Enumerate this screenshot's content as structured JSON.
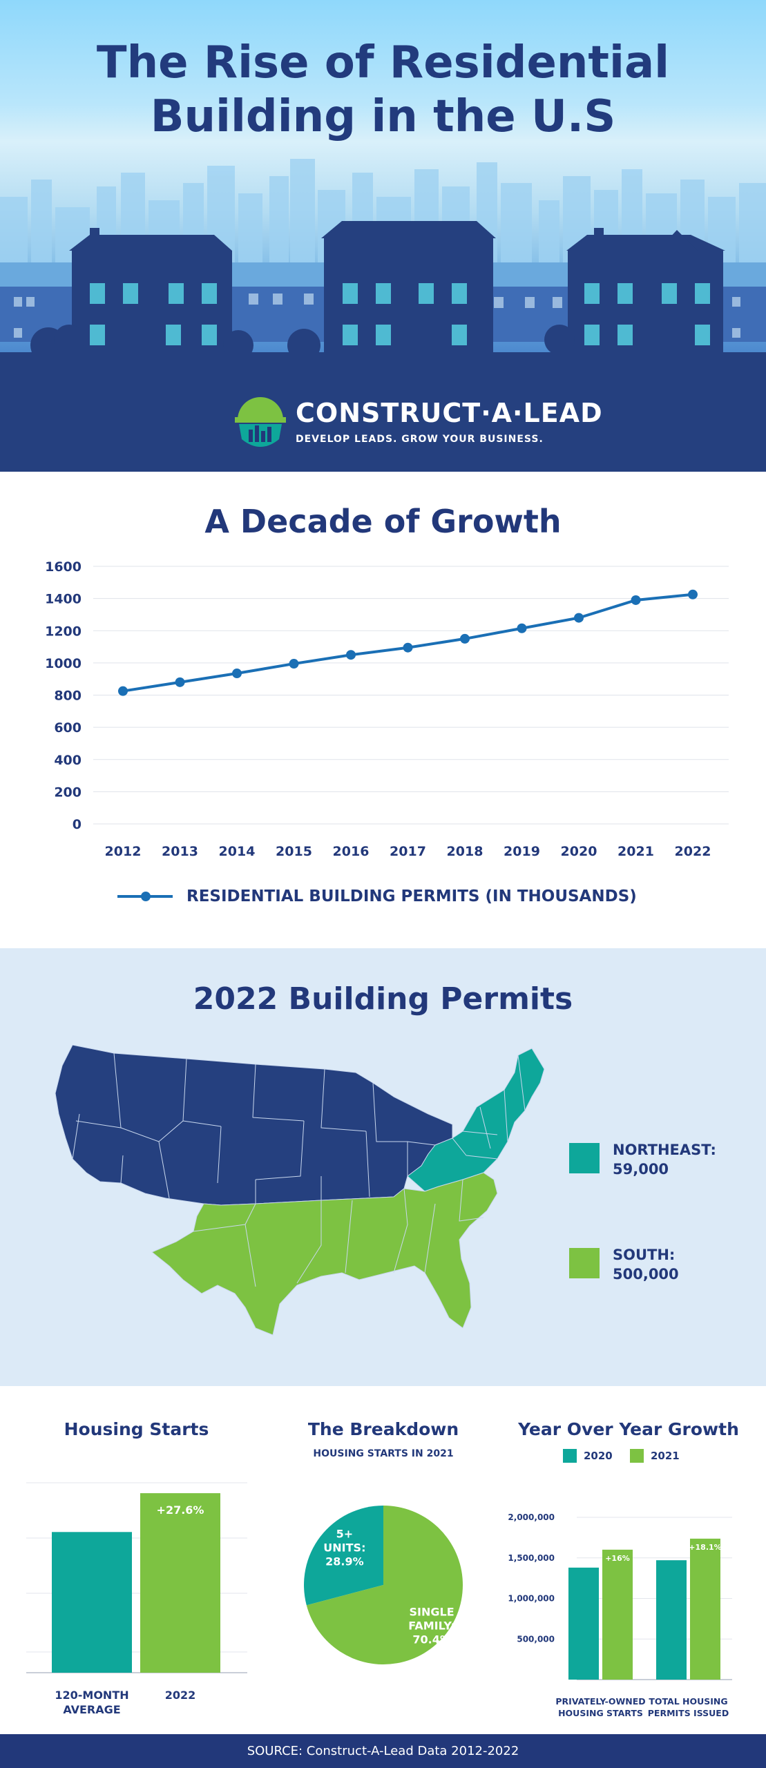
{
  "hero": {
    "title_line1": "The Rise of Residential",
    "title_line2": "Building in the U.S"
  },
  "logo": {
    "name": "CONSTRUCT·A·LEAD",
    "tagline": "DEVELOP LEADS. GROW YOUR BUSINESS.",
    "icon": "hardhat-city-icon"
  },
  "decade": {
    "title": "A Decade of Growth",
    "legend": "RESIDENTIAL BUILDING PERMITS (IN THOUSANDS)"
  },
  "permits": {
    "title": "2022 Building Permits",
    "northeast_label": "NORTHEAST:",
    "northeast_value": "59,000",
    "south_label": "SOUTH:",
    "south_value": "500,000"
  },
  "housing_starts": {
    "title": "Housing Starts"
  },
  "breakdown": {
    "title": "The Breakdown",
    "subtitle": "HOUSING STARTS IN 2021"
  },
  "yoy": {
    "title": "Year Over Year Growth",
    "key_2020": "2020",
    "key_2021": "2021"
  },
  "footer": {
    "source": "SOURCE: Construct-A-Lead Data 2012-2022"
  },
  "colors": {
    "navy": "#22387a",
    "teal": "#0ea79a",
    "green": "#7dc242",
    "line_blue": "#1a6fb5",
    "map_blue_bg": "#dceaf7"
  },
  "chart_data": [
    {
      "type": "line",
      "title": "A Decade of Growth",
      "x": [
        "2012",
        "2013",
        "2014",
        "2015",
        "2016",
        "2017",
        "2018",
        "2019",
        "2020",
        "2021",
        "2022"
      ],
      "series": [
        {
          "name": "RESIDENTIAL BUILDING PERMITS (IN THOUSANDS)",
          "values": [
            825,
            880,
            935,
            995,
            1050,
            1095,
            1150,
            1215,
            1280,
            1390,
            1425
          ]
        }
      ],
      "yticks": [
        "0",
        "200",
        "400",
        "600",
        "800",
        "1000",
        "1200",
        "1400",
        "1600"
      ],
      "ylim": [
        0,
        1600
      ],
      "grid": true,
      "legend": "bottom"
    },
    {
      "type": "bar",
      "title": "Housing Starts",
      "categories": [
        "120-MONTH AVERAGE",
        "2022"
      ],
      "category_lines": [
        [
          "120-MONTH",
          "AVERAGE"
        ],
        [
          "2022"
        ]
      ],
      "values": [
        1.0,
        1.276
      ],
      "data_labels": [
        "",
        "+27.6%"
      ],
      "ylim": [
        0,
        1.35
      ]
    },
    {
      "type": "pie",
      "title": "The Breakdown",
      "subtitle": "HOUSING STARTS IN 2021",
      "slices": [
        {
          "lines": [
            "5+",
            "UNITS:",
            "28.9%"
          ],
          "value": 28.9,
          "color": "#0ea79a"
        },
        {
          "lines": [
            "SINGLE",
            "FAMILY:",
            "70.4%"
          ],
          "value": 70.4,
          "color": "#7dc242"
        }
      ]
    },
    {
      "type": "bar",
      "title": "Year Over Year Growth",
      "categories": [
        "PRIVATELY-OWNED HOUSING STARTS",
        "TOTAL HOUSING PERMITS ISSUED"
      ],
      "category_lines": [
        [
          "PRIVATELY-OWNED",
          "HOUSING STARTS"
        ],
        [
          "TOTAL HOUSING",
          "PERMITS ISSUED"
        ]
      ],
      "series": [
        {
          "name": "2020",
          "values": [
            1380000,
            1471000
          ],
          "color": "#0ea79a"
        },
        {
          "name": "2021",
          "values": [
            1601000,
            1737000
          ],
          "color": "#7dc242",
          "data_labels": [
            "+16%",
            "+18.1%"
          ]
        }
      ],
      "yticks": [
        "500,000",
        "1,000,000",
        "1,500,000",
        "2,000,000"
      ],
      "ylim": [
        0,
        2000000
      ],
      "grid": true,
      "legend": "top"
    }
  ]
}
